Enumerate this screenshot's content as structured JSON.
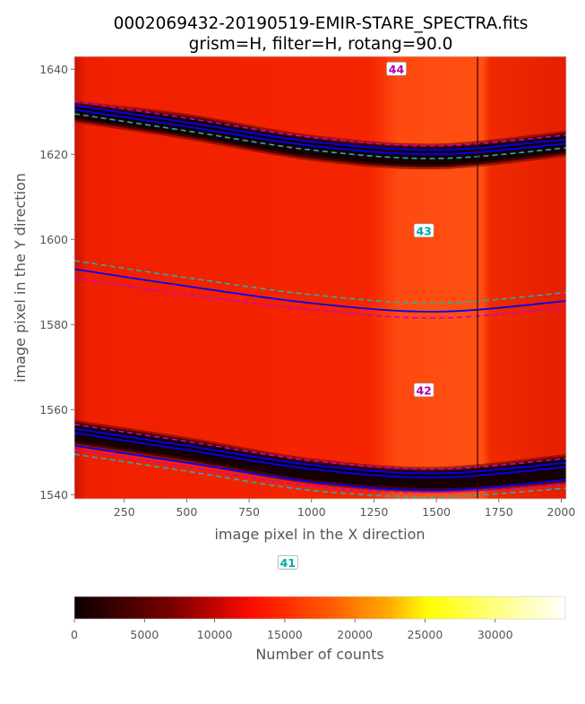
{
  "chart_data": [
    {
      "type": "heatmap",
      "title": "0002069432-20190519-EMIR-STARE_SPECTRA.fits",
      "subtitle": "grism=H, filter=H, rotang=90.0",
      "xlabel": "image pixel in the X direction",
      "ylabel": "image pixel in the Y direction",
      "xlim": [
        50,
        2020
      ],
      "ylim": [
        1539,
        1643
      ],
      "xticks": [
        250,
        500,
        750,
        1000,
        1250,
        1500,
        1750,
        2000
      ],
      "yticks": [
        1540,
        1560,
        1580,
        1600,
        1620,
        1640
      ],
      "grid": false,
      "background_counts": 12500,
      "bright_band_x": [
        1280,
        1665
      ],
      "dark_column_x": 1665,
      "gaps": [
        {
          "top": [
            1632,
            1629,
            1624,
            1622,
            1625
          ],
          "bottom": [
            1628,
            1624,
            1619,
            1617,
            1620
          ]
        },
        {
          "top": [
            1557,
            1553,
            1548,
            1546,
            1549
          ],
          "bottom": [
            1552,
            1548,
            1543,
            1541,
            1543
          ]
        }
      ],
      "curves_x": [
        50,
        500,
        1000,
        1500,
        2020
      ],
      "curves": [
        {
          "color": "#0000ff",
          "style": "solid",
          "y": [
            1631.5,
            1627.5,
            1623,
            1621,
            1623.5
          ]
        },
        {
          "color": "#0000ff",
          "style": "solid",
          "y": [
            1630.5,
            1626.5,
            1622,
            1620,
            1622.5
          ]
        },
        {
          "color": "#cc00cc",
          "style": "dashed",
          "y": [
            1632.5,
            1628.5,
            1624,
            1622,
            1624.5
          ]
        },
        {
          "color": "#20b2aa",
          "style": "dashed",
          "y": [
            1629.5,
            1625.5,
            1621,
            1619,
            1621.5
          ]
        },
        {
          "color": "#0000ff",
          "style": "solid",
          "y": [
            1593,
            1589,
            1585,
            1583,
            1585.5
          ]
        },
        {
          "color": "#cc00cc",
          "style": "dashed",
          "y": [
            1591,
            1587,
            1583.5,
            1581.5,
            1584
          ]
        },
        {
          "color": "#20b2aa",
          "style": "dashed",
          "y": [
            1595,
            1591,
            1587,
            1585,
            1587.5
          ]
        },
        {
          "color": "#0000ff",
          "style": "solid",
          "y": [
            1555.5,
            1551.5,
            1547,
            1545,
            1547.5
          ]
        },
        {
          "color": "#0000ff",
          "style": "solid",
          "y": [
            1554.5,
            1550.5,
            1546,
            1544,
            1546.5
          ]
        },
        {
          "color": "#cc00cc",
          "style": "dashed",
          "y": [
            1556.5,
            1552.5,
            1548,
            1546,
            1548.5
          ]
        },
        {
          "color": "#0000ff",
          "style": "solid",
          "y": [
            1551.5,
            1547.5,
            1543,
            1541,
            1543.5
          ]
        },
        {
          "color": "#cc00cc",
          "style": "dashed",
          "y": [
            1550.5,
            1546.5,
            1542,
            1540.5,
            1542.5
          ]
        },
        {
          "color": "#20b2aa",
          "style": "dashed",
          "y": [
            1549.5,
            1545.5,
            1541,
            1539.5,
            1541.5
          ]
        }
      ],
      "slit_labels": [
        {
          "text": "44",
          "x": 1340,
          "y": 1640,
          "color": "#b000b0"
        },
        {
          "text": "43",
          "x": 1450,
          "y": 1602,
          "color": "#00aaaa"
        },
        {
          "text": "42",
          "x": 1450,
          "y": 1564.5,
          "color": "#b000b0"
        },
        {
          "text": "41",
          "x": 905,
          "y": 1524,
          "color": "#00aaaa"
        }
      ]
    },
    {
      "type": "colorbar",
      "label": "Number of counts",
      "colormap": "hot",
      "range": [
        0,
        35000
      ],
      "ticks": [
        0,
        5000,
        10000,
        15000,
        20000,
        25000,
        30000
      ]
    }
  ]
}
